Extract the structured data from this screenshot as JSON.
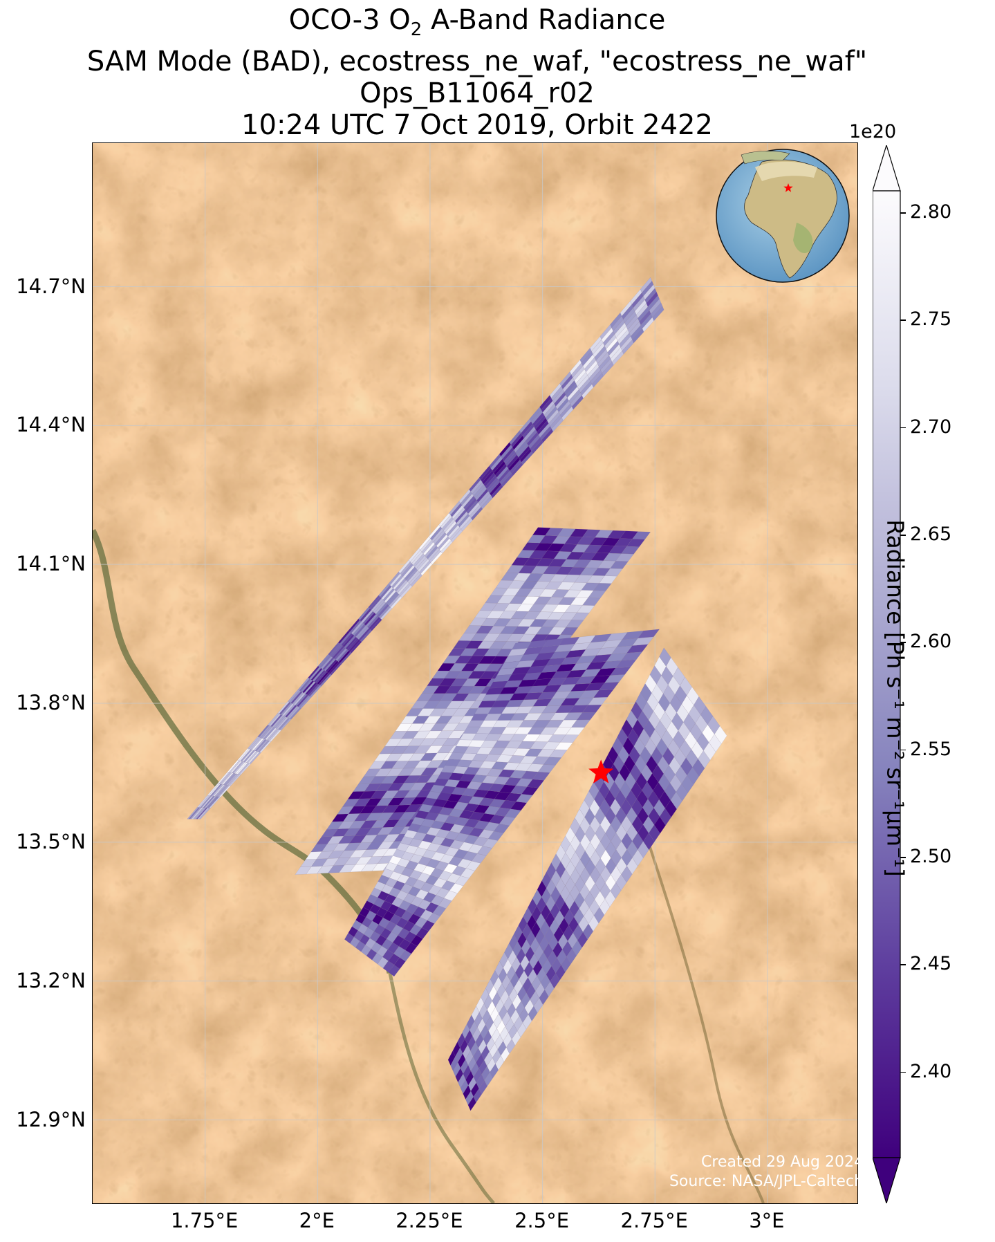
{
  "title": {
    "line1_prefix": "OCO-3 O",
    "line1_sub": "2",
    "line1_suffix": " A-Band Radiance",
    "line2": "SAM Mode (BAD), ecostress_ne_waf, \"ecostress_ne_waf\"",
    "line3": "Ops_B11064_r02",
    "line4": "10:24 UTC 7 Oct 2019, Orbit 2422"
  },
  "map": {
    "lon_range": [
      1.5,
      3.2
    ],
    "lat_range": [
      12.72,
      15.01
    ],
    "lat_ticks": [
      {
        "value": 14.7,
        "label": "14.7°N"
      },
      {
        "value": 14.4,
        "label": "14.4°N"
      },
      {
        "value": 14.1,
        "label": "14.1°N"
      },
      {
        "value": 13.8,
        "label": "13.8°N"
      },
      {
        "value": 13.5,
        "label": "13.5°N"
      },
      {
        "value": 13.2,
        "label": "13.2°N"
      },
      {
        "value": 12.9,
        "label": "12.9°N"
      }
    ],
    "lon_ticks": [
      {
        "value": 1.75,
        "label": "1.75°E"
      },
      {
        "value": 2.0,
        "label": "2°E"
      },
      {
        "value": 2.25,
        "label": "2.25°E"
      },
      {
        "value": 2.5,
        "label": "2.5°E"
      },
      {
        "value": 2.75,
        "label": "2.75°E"
      },
      {
        "value": 3.0,
        "label": "3°E"
      }
    ],
    "grid": true,
    "background": "satellite imagery (desert, orange-tan)",
    "target_marker": {
      "lon": 2.63,
      "lat": 13.65,
      "symbol": "red-star",
      "color": "#ff0000"
    },
    "swaths": [
      {
        "corners": [
          [
            1.71,
            13.55
          ],
          [
            2.74,
            14.72
          ],
          [
            2.77,
            14.65
          ],
          [
            1.74,
            13.55
          ]
        ],
        "mean_level": 0.5
      },
      {
        "corners": [
          [
            1.95,
            13.43
          ],
          [
            2.49,
            14.18
          ],
          [
            2.74,
            14.17
          ],
          [
            2.17,
            13.44
          ]
        ],
        "mean_level": 0.5
      },
      {
        "corners": [
          [
            2.06,
            13.29
          ],
          [
            2.44,
            13.93
          ],
          [
            2.76,
            13.96
          ],
          [
            2.17,
            13.21
          ]
        ],
        "mean_level": 0.55
      },
      {
        "corners": [
          [
            2.29,
            13.03
          ],
          [
            2.77,
            13.92
          ],
          [
            2.91,
            13.73
          ],
          [
            2.34,
            12.92
          ]
        ],
        "mean_level": 0.5
      }
    ]
  },
  "colorbar": {
    "min": 2.36,
    "max": 2.81,
    "exponent_label": "1e20",
    "extend": "both",
    "colormap": "Purples_r",
    "ticks": [
      "2.80",
      "2.75",
      "2.70",
      "2.65",
      "2.60",
      "2.55",
      "2.50",
      "2.45",
      "2.40"
    ],
    "tick_values": [
      2.8,
      2.75,
      2.7,
      2.65,
      2.6,
      2.55,
      2.5,
      2.45,
      2.4
    ],
    "label": "Radiance [Ph s⁻¹ m⁻² sr⁻¹μm⁻¹]",
    "color_low": "#3f007d",
    "color_high": "#fcfbfd"
  },
  "inset": {
    "type": "globe",
    "marker": "red-star",
    "marker_color": "#ff0000"
  },
  "credits": {
    "created": "Created 29 Aug 2024",
    "source": "Source: NASA/JPL-Caltech"
  }
}
